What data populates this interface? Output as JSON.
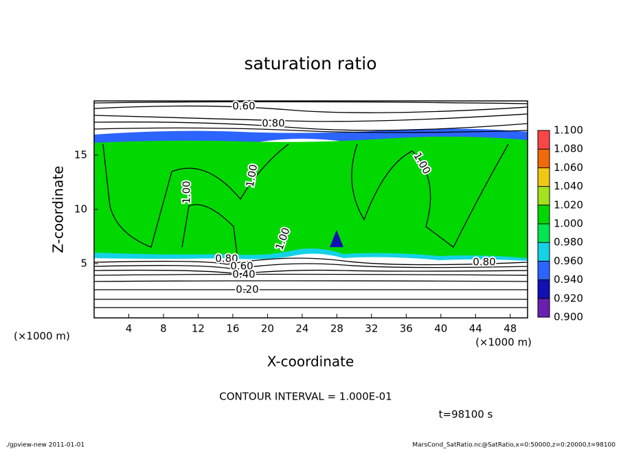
{
  "chart_data": {
    "type": "contour",
    "title": "saturation ratio",
    "xlabel": "X-coordinate",
    "ylabel": "Z-coordinate",
    "xunit": "(×1000 m)",
    "yunit": "(×1000 m)",
    "xlim": [
      0,
      50
    ],
    "ylim": [
      0,
      20
    ],
    "xticks": [
      4,
      8,
      12,
      16,
      20,
      24,
      28,
      32,
      36,
      40,
      44,
      48
    ],
    "yticks": [
      5,
      10,
      15
    ],
    "colorbar": {
      "levels": [
        {
          "value": 0.9,
          "label": "0.900"
        },
        {
          "value": 0.92,
          "label": "0.920"
        },
        {
          "value": 0.94,
          "label": "0.940"
        },
        {
          "value": 0.96,
          "label": "0.960"
        },
        {
          "value": 0.98,
          "label": "0.980"
        },
        {
          "value": 1.0,
          "label": "1.000"
        },
        {
          "value": 1.02,
          "label": "1.020"
        },
        {
          "value": 1.04,
          "label": "1.040"
        },
        {
          "value": 1.06,
          "label": "1.060"
        },
        {
          "value": 1.08,
          "label": "1.080"
        },
        {
          "value": 1.1,
          "label": "1.100"
        }
      ],
      "colors": [
        "#6a1fb0",
        "#1010b4",
        "#2c64ff",
        "#14d2e6",
        "#00e650",
        "#00d800",
        "#a4e21e",
        "#f0c814",
        "#f06a0a",
        "#fa4646"
      ]
    },
    "contour_labels": [
      "0.60",
      "0.80",
      "1.00",
      "1.00",
      "1.00",
      "1.00",
      "0.80",
      "0.80",
      "0.60",
      "0.40",
      "0.20"
    ],
    "contour_interval": "CONTOUR INTERVAL = 1.000E-01",
    "time": "t=98100 s",
    "footer_left": "./gpview-new  2011-01-01",
    "footer_right": "MarsCond_SatRatio.nc@SatRatio,x=0:50000,z=0:20000,t=98100"
  }
}
